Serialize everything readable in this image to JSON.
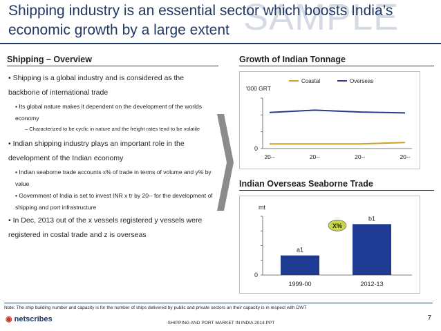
{
  "slide": {
    "title": "Shipping industry is an essential sector which boosts India’s economic growth by a large extent",
    "watermark": "SAMPLE"
  },
  "left": {
    "heading": "Shipping – Overview",
    "bullets": [
      {
        "text": "Shipping is a global industry and is considered as the backbone of international trade",
        "sub": [
          {
            "text": "Its global nature makes it dependent on the development of the worlds economy",
            "sub": [
              "Characterized to be cyclic in nature and the freight rates tend to be volatile"
            ]
          }
        ]
      },
      {
        "text": "Indian shipping industry plays an important role in the development of the Indian economy",
        "sub": [
          {
            "text": "Indian seaborne trade accounts x% of trade in terms of volume and y% by value"
          },
          {
            "text": "Government of India is set to invest INR x tr by 20-- for the development of shipping and port infrastructure"
          }
        ]
      },
      {
        "text": "In Dec, 2013 out of the x vessels registered y vessels were registered in costal trade and z is overseas"
      }
    ]
  },
  "right": {
    "heading_top": "Growth of Indian Tonnage",
    "heading_bottom": "Indian Overseas Seaborne Trade"
  },
  "chart_data": [
    {
      "type": "line",
      "ylabel": "'000 GRT",
      "categories": [
        "20--",
        "20--",
        "20--",
        "20--"
      ],
      "y_tick_labels": [
        "0"
      ],
      "legend_position": "top",
      "series": [
        {
          "name": "Coastal",
          "color": "#c9a227",
          "values": [
            1,
            1,
            1,
            1.3
          ]
        },
        {
          "name": "Overseas",
          "color": "#2b3a8c",
          "values": [
            7.8,
            8.3,
            7.9,
            7.7
          ]
        }
      ]
    },
    {
      "type": "bar",
      "ylabel": "mt",
      "categories": [
        "1999-00",
        "2012-13"
      ],
      "values": [
        1.0,
        2.6
      ],
      "data_labels": [
        "a1",
        "b1"
      ],
      "y_tick_labels": [
        "0"
      ],
      "bar_color": "#1f3a93",
      "annotation": "X%",
      "annotation_color": "#c9d44a"
    }
  ],
  "footer": {
    "note": "Note: The ship building number and capacity is for the number of ships delivered by public and private sectors an their capacity is in respect with DWT",
    "logo": "netscribes",
    "center": "SHIPPING AND PORT MARKET IN INDIA 2014.PPT",
    "page": "7"
  }
}
